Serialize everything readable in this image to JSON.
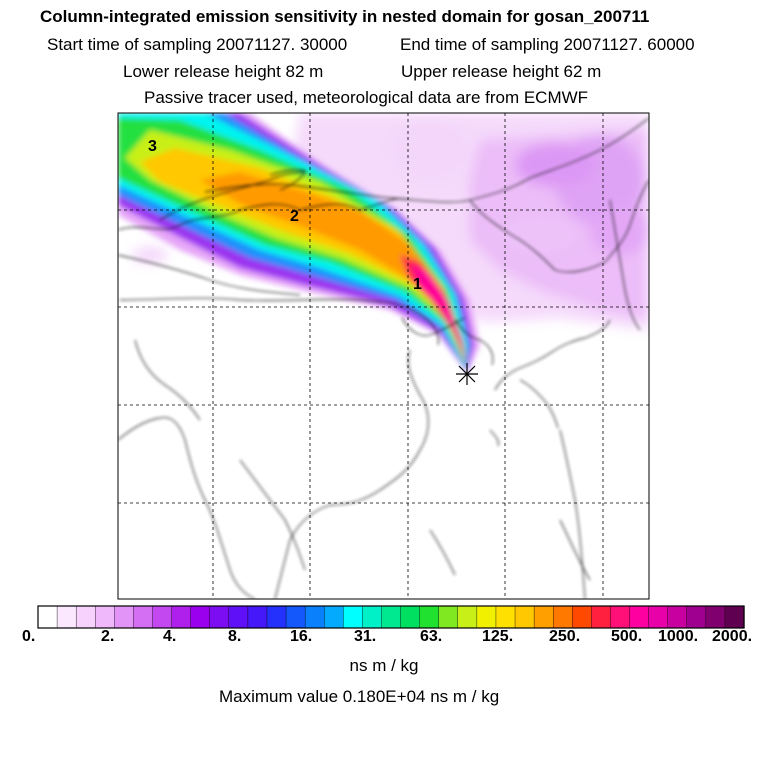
{
  "header": {
    "title": "Column-integrated emission sensitivity in nested domain for gosan_200711",
    "start_sampling": "Start time of sampling 20071127. 30000",
    "end_sampling": "End time of sampling 20071127. 60000",
    "lower_release": "Lower release height   82 m",
    "upper_release": "Upper release height   62 m",
    "tracer_info": "Passive tracer used, meteorological data are from ECMWF"
  },
  "map": {
    "markers": [
      {
        "label": "1"
      },
      {
        "label": "2"
      },
      {
        "label": "3"
      }
    ],
    "release_site": "gosan"
  },
  "colorbar": {
    "colors": [
      "#ffffff",
      "#fbe8ff",
      "#f6d2fd",
      "#efb8fb",
      "#e395f7",
      "#d46ef3",
      "#c448f0",
      "#b020ed",
      "#9a00ee",
      "#7c0cf2",
      "#6010f6",
      "#4418f8",
      "#2430fb",
      "#1458fc",
      "#0a80fd",
      "#04aafe",
      "#00ffff",
      "#00f0c8",
      "#00e890",
      "#00e060",
      "#20e030",
      "#80e820",
      "#c8f018",
      "#f0f000",
      "#ffe000",
      "#ffc800",
      "#ffa000",
      "#ff7800",
      "#ff4800",
      "#ff2040",
      "#ff1078",
      "#ff00a0",
      "#e800a8",
      "#c800a0",
      "#a00090",
      "#800070",
      "#600050"
    ],
    "tick_labels": [
      "0.",
      "2.",
      "4.",
      "8.",
      "16.",
      "31.",
      "63.",
      "125.",
      "250.",
      "500.",
      "1000.",
      "2000."
    ],
    "units": "ns m / kg",
    "max_value_text": "Maximum value  0.180E+04 ns m / kg"
  }
}
